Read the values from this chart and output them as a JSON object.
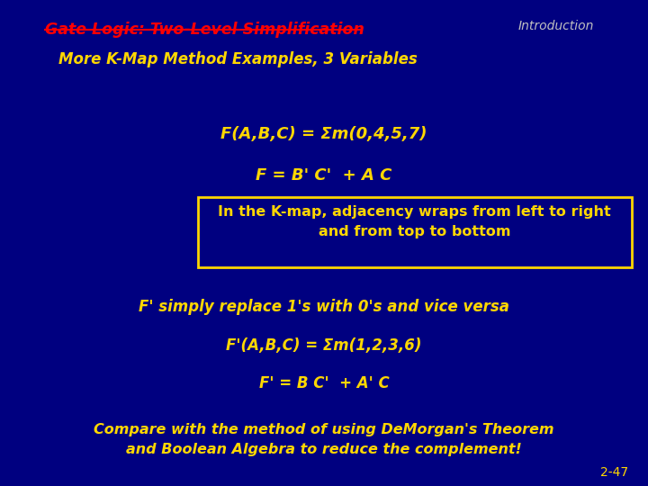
{
  "bg_color": "#000080",
  "title_text": "Gate Logic: Two-Level Simplification",
  "title_color": "#FF0000",
  "intro_text": "Introduction",
  "intro_color": "#C0C0C0",
  "subtitle_text": "More K-Map Method Examples, 3 Variables",
  "subtitle_color": "#FFD700",
  "line1": "F(A,B,C) = Σm(0,4,5,7)",
  "line2": "F = B' C'  + A C",
  "box_text": "In the K-map, adjacency wraps from left to right\nand from top to bottom",
  "box_border_color": "#FFD700",
  "box_bg_color": "#000080",
  "box_text_color": "#FFD700",
  "line3": "F' simply replace 1's with 0's and vice versa",
  "line4": "F'(A,B,C) = Σm(1,2,3,6)",
  "line5": "F' = B C'  + A' C",
  "line6": "Compare with the method of using DeMorgan's Theorem\nand Boolean Algebra to reduce the complement!",
  "yellow": "#FFD700",
  "page_num": "2-47",
  "page_color": "#FFD700"
}
